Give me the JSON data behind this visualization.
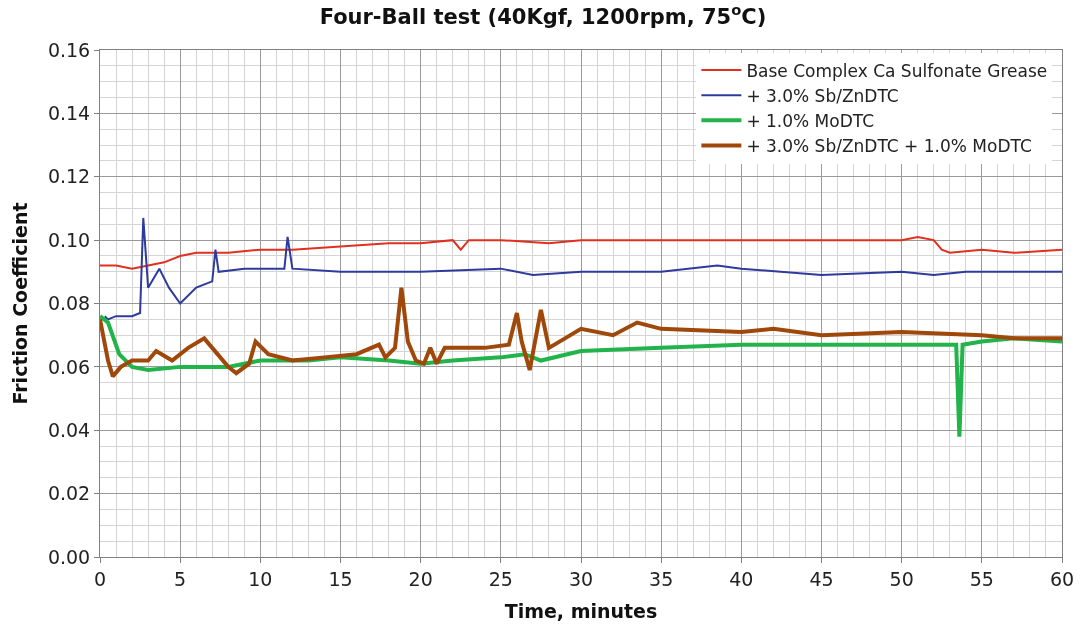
{
  "chart_data": {
    "type": "line",
    "title": "Four-Ball test (40Kgf, 1200rpm, 75$^{o}$C)",
    "xlabel": "Time, minutes",
    "ylabel": "Friction Coefficient",
    "xlim": [
      0,
      60
    ],
    "xticks": [
      0,
      5,
      10,
      15,
      20,
      25,
      30,
      35,
      40,
      45,
      50,
      55,
      60
    ],
    "ylim": [
      0,
      0.16
    ],
    "yticks": [
      {
        "value": 0,
        "label": "0.00"
      },
      {
        "value": 0.02,
        "label": "0.02"
      },
      {
        "value": 0.04,
        "label": "0.04"
      },
      {
        "value": 0.06,
        "label": "0.06"
      },
      {
        "value": 0.08,
        "label": "0.08"
      },
      {
        "value": 0.1,
        "label": "0.10"
      },
      {
        "value": 0.12,
        "label": "0.12"
      },
      {
        "value": 0.14,
        "label": "0.14"
      },
      {
        "value": 0.16,
        "label": "0.16"
      }
    ],
    "grid": true,
    "legend": "top right",
    "marker": "none",
    "line_style": "solid",
    "series": [
      {
        "name": "Base Complex Ca Sulfonate Grease",
        "color": "#e0301e",
        "x": [
          0,
          1,
          2,
          3,
          4,
          5,
          6,
          8,
          10,
          12,
          15,
          18,
          20,
          22,
          22.5,
          23,
          25,
          28,
          30,
          35,
          40,
          45,
          50,
          51,
          52,
          52.5,
          53,
          55,
          57,
          60
        ],
        "values": [
          0.092,
          0.092,
          0.091,
          0.092,
          0.093,
          0.095,
          0.096,
          0.096,
          0.097,
          0.097,
          0.098,
          0.099,
          0.099,
          0.1,
          0.097,
          0.1,
          0.1,
          0.099,
          0.1,
          0.1,
          0.1,
          0.1,
          0.1,
          0.101,
          0.1,
          0.097,
          0.096,
          0.097,
          0.096,
          0.097
        ]
      },
      {
        "name": "+ 3.0% Sb/ZnDTC",
        "color": "#2e3a9e",
        "x": [
          0.3,
          0.5,
          1,
          2,
          2.5,
          2.7,
          3,
          3.7,
          4.3,
          5,
          6,
          7,
          7.2,
          7.4,
          9,
          11.5,
          11.7,
          12,
          15,
          20,
          25,
          27,
          30,
          35,
          38.5,
          40,
          45,
          50,
          52,
          54,
          57,
          60
        ],
        "values": [
          0.076,
          0.075,
          0.076,
          0.076,
          0.077,
          0.107,
          0.085,
          0.091,
          0.085,
          0.08,
          0.085,
          0.087,
          0.097,
          0.09,
          0.091,
          0.091,
          0.101,
          0.091,
          0.09,
          0.09,
          0.091,
          0.089,
          0.09,
          0.09,
          0.092,
          0.091,
          0.089,
          0.09,
          0.089,
          0.09,
          0.09,
          0.09
        ]
      },
      {
        "name": "+ 1.0% MoDTC",
        "color": "#22b34a",
        "x": [
          0,
          0.5,
          1.2,
          2,
          3,
          5,
          8,
          10,
          13,
          15,
          18,
          20,
          22,
          25,
          26.5,
          27.5,
          30,
          35,
          40,
          45,
          50,
          53.4,
          53.6,
          53.8,
          55,
          57,
          60
        ],
        "values": [
          0.076,
          0.074,
          0.064,
          0.06,
          0.059,
          0.06,
          0.06,
          0.062,
          0.062,
          0.063,
          0.062,
          0.061,
          0.062,
          0.063,
          0.064,
          0.062,
          0.065,
          0.066,
          0.067,
          0.067,
          0.067,
          0.067,
          0.038,
          0.067,
          0.068,
          0.069,
          0.068
        ]
      },
      {
        "name": "+ 3.0% Sb/ZnDTC + 1.0% MoDTC",
        "color": "#a0470a",
        "x": [
          0,
          0.5,
          0.8,
          1.3,
          2,
          3,
          3.5,
          4.5,
          5.5,
          6.5,
          7,
          8,
          8.5,
          9.3,
          9.7,
          10.5,
          12,
          14,
          16,
          17.4,
          17.8,
          18.4,
          18.8,
          19.2,
          19.7,
          20.2,
          20.6,
          21,
          21.5,
          24,
          25.5,
          26,
          26.3,
          26.8,
          27.5,
          28,
          29,
          30,
          32,
          33.5,
          35,
          40,
          42,
          45,
          50,
          55,
          57,
          60
        ],
        "values": [
          0.075,
          0.062,
          0.057,
          0.06,
          0.062,
          0.062,
          0.065,
          0.062,
          0.066,
          0.069,
          0.066,
          0.06,
          0.058,
          0.061,
          0.068,
          0.064,
          0.062,
          0.063,
          0.064,
          0.067,
          0.063,
          0.066,
          0.085,
          0.068,
          0.062,
          0.061,
          0.066,
          0.061,
          0.066,
          0.066,
          0.067,
          0.077,
          0.068,
          0.059,
          0.078,
          0.066,
          0.069,
          0.072,
          0.07,
          0.074,
          0.072,
          0.071,
          0.072,
          0.07,
          0.071,
          0.07,
          0.069,
          0.069
        ]
      }
    ]
  }
}
